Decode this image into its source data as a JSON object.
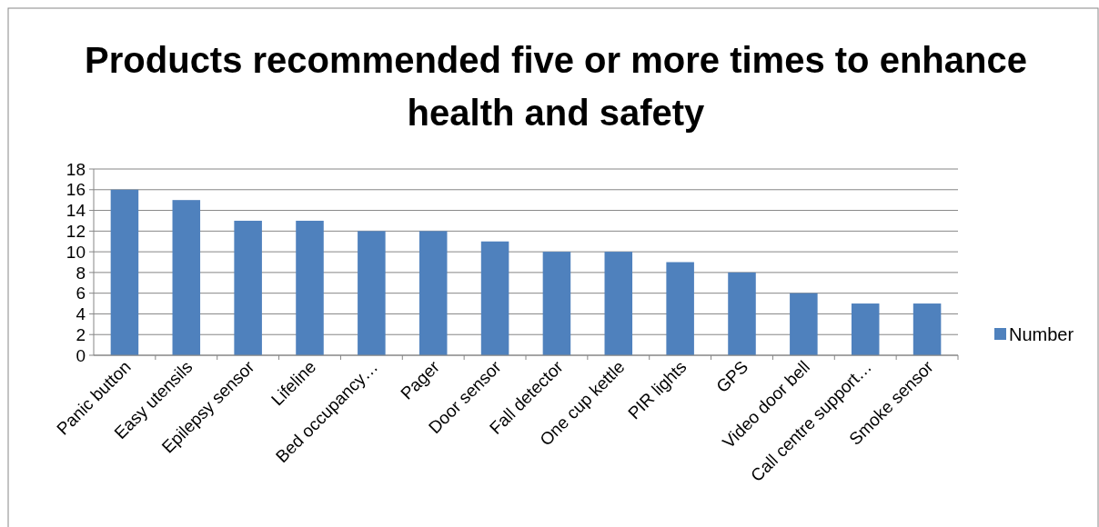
{
  "chart_data": {
    "type": "bar",
    "title": "Products recommended five or more times to enhance health and safety",
    "categories": [
      "Panic button",
      "Easy utensils",
      "Epilepsy sensor",
      "Lifeline",
      "Bed occupancy…",
      "Pager",
      "Door sensor",
      "Fall detector",
      "One cup kettle",
      "PIR lights",
      "GPS",
      "Video door bell",
      "Call centre support…",
      "Smoke sensor"
    ],
    "series": [
      {
        "name": "Number",
        "color": "#4f81bd",
        "values": [
          16,
          15,
          13,
          13,
          12,
          12,
          11,
          10,
          10,
          9,
          8,
          6,
          5,
          5
        ]
      }
    ],
    "ylim": [
      0,
      18
    ],
    "yticks": [
      0,
      2,
      4,
      6,
      8,
      10,
      12,
      14,
      16,
      18
    ],
    "grid": "y",
    "legend": "right"
  }
}
